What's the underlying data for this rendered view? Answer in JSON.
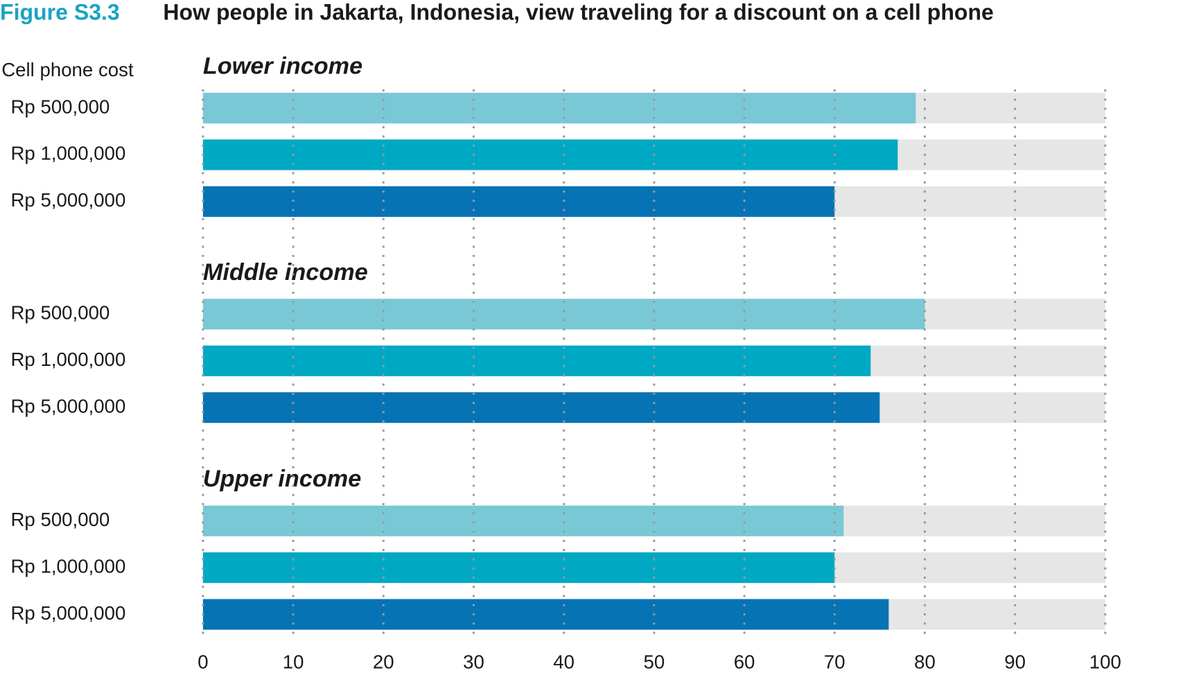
{
  "chart_data": {
    "type": "bar",
    "orientation": "horizontal",
    "figure_label": "Figure S3.3",
    "title": "How people in Jakarta, Indonesia, view traveling for a discount on a cell phone",
    "y_label": "Cell phone cost",
    "colors": [
      "#79c8d6",
      "#00a9c3",
      "#0673b5"
    ],
    "track_color": "#e6e6e6",
    "groups": [
      {
        "name": "Lower income",
        "categories": [
          "Rp 500,000",
          "Rp 1,000,000",
          "Rp 5,000,000"
        ],
        "values": [
          79,
          77,
          70
        ]
      },
      {
        "name": "Middle income",
        "categories": [
          "Rp 500,000",
          "Rp 1,000,000",
          "Rp 5,000,000"
        ],
        "values": [
          80,
          74,
          75
        ]
      },
      {
        "name": "Upper income",
        "categories": [
          "Rp 500,000",
          "Rp 1,000,000",
          "Rp 5,000,000"
        ],
        "values": [
          71,
          70,
          76
        ]
      }
    ],
    "xlim": [
      0,
      100
    ],
    "xticks": [
      0,
      10,
      20,
      30,
      40,
      50,
      60,
      70,
      80,
      90,
      100
    ],
    "grid": true
  }
}
